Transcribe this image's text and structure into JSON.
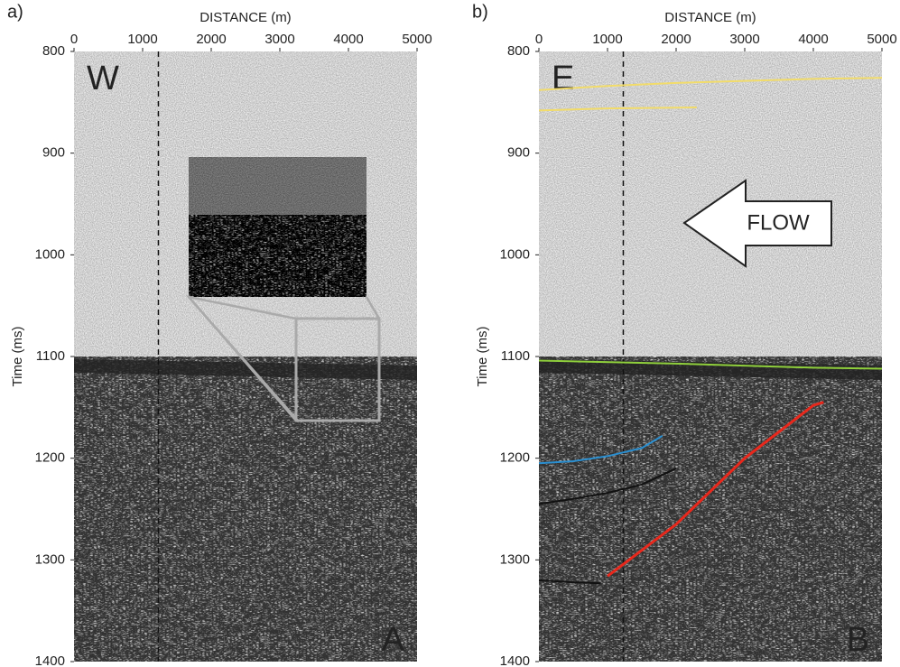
{
  "chart_data": [
    {
      "type": "seismic",
      "panel_label": "a)",
      "x_label": "DISTANCE (m)",
      "y_label": "Time (ms)",
      "xlim": [
        0,
        5000
      ],
      "ylim": [
        1400,
        800
      ],
      "xticks": [
        0,
        1000,
        2000,
        3000,
        4000,
        5000
      ],
      "yticks": [
        800,
        900,
        1000,
        1100,
        1200,
        1300,
        1400
      ],
      "reference_x": 1230,
      "corner_labels": [
        "W",
        "A"
      ],
      "series": []
    },
    {
      "type": "seismic",
      "panel_label": "b)",
      "x_label": "DISTANCE (m)",
      "y_label": "Time (ms)",
      "xlim": [
        0,
        5000
      ],
      "ylim": [
        1400,
        800
      ],
      "xticks": [
        0,
        1000,
        2000,
        3000,
        4000,
        5000
      ],
      "yticks": [
        800,
        900,
        1000,
        1100,
        1200,
        1300,
        1400
      ],
      "reference_x": 1230,
      "corner_labels": [
        "E",
        "B"
      ],
      "annotation": "FLOW",
      "series": [
        {
          "color": "#f2dc6a",
          "x": [
            0,
            1000,
            2000,
            3000,
            4000,
            5000
          ],
          "values": [
            838,
            834,
            831,
            829,
            827,
            826
          ]
        },
        {
          "color": "#f2dc6a",
          "x": [
            0,
            1000,
            2300
          ],
          "values": [
            858,
            856,
            855
          ]
        },
        {
          "color": "#8fcf3c",
          "x": [
            0,
            2000,
            4000,
            5000
          ],
          "values": [
            1104,
            1107,
            1111,
            1112
          ]
        },
        {
          "color": "#2b8fd0",
          "x": [
            0,
            500,
            1000,
            1500,
            1800
          ],
          "values": [
            1205,
            1203,
            1198,
            1190,
            1178
          ]
        },
        {
          "color": "#111111",
          "x": [
            0,
            500,
            1000,
            1500,
            2000
          ],
          "values": [
            1245,
            1240,
            1234,
            1226,
            1210
          ]
        },
        {
          "color": "#111111",
          "x": [
            0,
            500,
            900
          ],
          "values": [
            1320,
            1322,
            1323
          ]
        },
        {
          "color": "#e8281c",
          "x": [
            1000,
            2000,
            3000,
            4000,
            4150
          ],
          "values": [
            1316,
            1265,
            1200,
            1148,
            1145
          ]
        }
      ]
    }
  ]
}
